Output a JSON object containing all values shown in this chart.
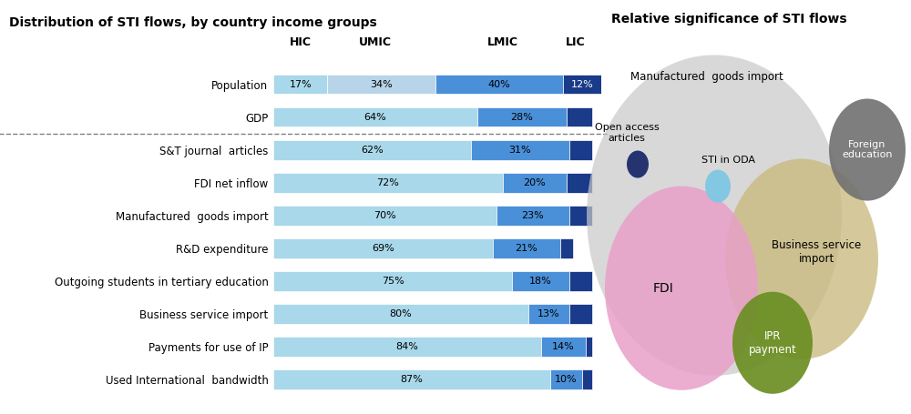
{
  "left_title": "Distribution of STI flows, by country income groups",
  "right_title": "Relative significance of STI flows",
  "categories": [
    "Population",
    "GDP",
    "S&T journal  articles",
    "FDI net inflow",
    "Manufactured  goods import",
    "R&D expenditure",
    "Outgoing students in tertiary education",
    "Business service import",
    "Payments for use of IP",
    "Used International  bandwidth"
  ],
  "bar_data": [
    [
      17,
      34,
      40,
      12
    ],
    [
      64,
      0,
      28,
      8
    ],
    [
      62,
      0,
      31,
      7
    ],
    [
      72,
      0,
      20,
      8
    ],
    [
      70,
      0,
      23,
      7
    ],
    [
      69,
      0,
      21,
      4
    ],
    [
      75,
      0,
      18,
      7
    ],
    [
      80,
      0,
      13,
      7
    ],
    [
      84,
      0,
      14,
      2
    ],
    [
      87,
      0,
      10,
      3
    ]
  ],
  "bar_labels": [
    [
      "17%",
      "34%",
      "40%",
      "12%"
    ],
    [
      "64%",
      "",
      "28%",
      ""
    ],
    [
      "62%",
      "",
      "31%",
      ""
    ],
    [
      "72%",
      "",
      "20%",
      ""
    ],
    [
      "70%",
      "",
      "23%",
      ""
    ],
    [
      "69%",
      "",
      "21%",
      ""
    ],
    [
      "75%",
      "",
      "18%",
      ""
    ],
    [
      "80%",
      "",
      "13%",
      ""
    ],
    [
      "84%",
      "",
      "14%",
      ""
    ],
    [
      "87%",
      "",
      "10%",
      ""
    ]
  ],
  "pop_colors": [
    "#A8D8EA",
    "#B8D4E8",
    "#4A90D9",
    "#1A3A8A"
  ],
  "hic_umic_color": "#A8D8EA",
  "lmic_color": "#4A90D9",
  "lic_color": "#1A3A8A",
  "col_headers": [
    "HIC",
    "UMIC",
    "LMIC",
    "LIC"
  ]
}
